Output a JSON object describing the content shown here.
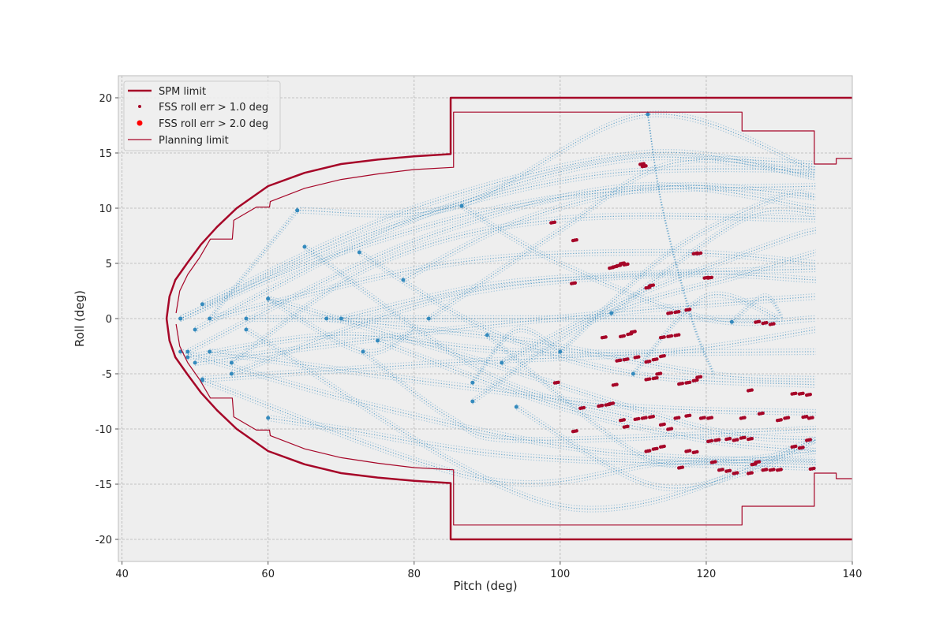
{
  "chart_data": {
    "type": "scatter",
    "title": "",
    "xlabel": "Pitch (deg)",
    "ylabel": "Roll (deg)",
    "xlim": [
      39.5,
      140
    ],
    "ylim": [
      -22,
      22
    ],
    "xticks": [
      40,
      60,
      80,
      100,
      120,
      140
    ],
    "yticks": [
      -20,
      -15,
      -10,
      -5,
      0,
      5,
      10,
      15,
      20
    ],
    "grid": true,
    "legend": {
      "placement": "top-left",
      "entries": [
        "SPM limit",
        "FSS roll err > 1.0 deg",
        "FSS roll err > 2.0 deg",
        "Planning limit"
      ]
    },
    "colors": {
      "limit": "#a60628",
      "trajectory": "#348abd",
      "err1": "#a60628",
      "err2": "#ff0000",
      "background": "#eeeeee"
    },
    "spm_limit": [
      [
        140,
        20
      ],
      [
        85,
        20
      ],
      [
        85,
        14.9
      ],
      [
        80,
        14.7
      ],
      [
        75,
        14.4
      ],
      [
        70,
        14
      ],
      [
        65,
        13.2
      ],
      [
        60,
        12
      ],
      [
        55.7,
        10
      ],
      [
        53,
        8.3
      ],
      [
        50.8,
        6.7
      ],
      [
        48.9,
        5
      ],
      [
        47.3,
        3.5
      ],
      [
        46.5,
        2
      ],
      [
        46.1,
        0
      ],
      [
        46.5,
        -2
      ],
      [
        47.3,
        -3.5
      ],
      [
        48.9,
        -5
      ],
      [
        50.8,
        -6.7
      ],
      [
        53,
        -8.3
      ],
      [
        55.7,
        -10
      ],
      [
        60,
        -12
      ],
      [
        65,
        -13.2
      ],
      [
        70,
        -14
      ],
      [
        75,
        -14.4
      ],
      [
        80,
        -14.7
      ],
      [
        85,
        -14.9
      ],
      [
        85,
        -20
      ],
      [
        140,
        -20
      ]
    ],
    "planning_limit": [
      [
        140,
        14.5
      ],
      [
        137.8,
        14.5
      ],
      [
        137.8,
        14
      ],
      [
        134.8,
        14
      ],
      [
        134.8,
        17
      ],
      [
        124.9,
        17
      ],
      [
        124.9,
        18.7
      ],
      [
        85.4,
        18.7
      ],
      [
        85.4,
        13.7
      ],
      [
        80,
        13.5
      ],
      [
        75,
        13.1
      ],
      [
        70,
        12.6
      ],
      [
        65,
        11.8
      ],
      [
        60.3,
        10.6
      ],
      [
        60.2,
        10.1
      ],
      [
        58.4,
        10.1
      ],
      [
        55.3,
        8.9
      ],
      [
        55.1,
        7.2
      ],
      [
        52.1,
        7.2
      ],
      [
        50.6,
        5.5
      ],
      [
        49,
        4
      ],
      [
        47.9,
        2.5
      ],
      [
        47.4,
        0.5
      ]
    ],
    "trajectories": [
      [
        [
          48,
          0
        ],
        [
          70,
          6
        ],
        [
          100,
          11
        ],
        [
          135,
          12
        ]
      ],
      [
        [
          48,
          0
        ],
        [
          75,
          8
        ],
        [
          105,
          13
        ],
        [
          135,
          13.5
        ]
      ],
      [
        [
          50,
          -1
        ],
        [
          80,
          9
        ],
        [
          110,
          14.5
        ],
        [
          135,
          13
        ]
      ],
      [
        [
          51,
          1.3
        ],
        [
          80,
          10
        ],
        [
          112,
          15
        ],
        [
          135,
          12.8
        ]
      ],
      [
        [
          49,
          -3
        ],
        [
          80,
          7
        ],
        [
          110,
          12
        ],
        [
          135,
          10
        ]
      ],
      [
        [
          52,
          0
        ],
        [
          85,
          5
        ],
        [
          115,
          6
        ],
        [
          135,
          5
        ]
      ],
      [
        [
          55,
          -5
        ],
        [
          85,
          2
        ],
        [
          115,
          4
        ],
        [
          135,
          3.5
        ]
      ],
      [
        [
          50,
          -4
        ],
        [
          85,
          -1
        ],
        [
          115,
          1
        ],
        [
          135,
          2
        ]
      ],
      [
        [
          51,
          -5.5
        ],
        [
          85,
          -4
        ],
        [
          115,
          -3
        ],
        [
          135,
          -1
        ]
      ],
      [
        [
          52,
          -3
        ],
        [
          85,
          -6
        ],
        [
          110,
          -8
        ],
        [
          135,
          -8.5
        ]
      ],
      [
        [
          48,
          -3
        ],
        [
          75,
          -8
        ],
        [
          105,
          -12
        ],
        [
          135,
          -13
        ]
      ],
      [
        [
          51,
          -5.6
        ],
        [
          90,
          -14.6
        ],
        [
          115,
          -13
        ],
        [
          135,
          -12.8
        ]
      ],
      [
        [
          60,
          -9
        ],
        [
          70,
          -10
        ],
        [
          95,
          -12.5
        ],
        [
          135,
          -13.5
        ]
      ],
      [
        [
          57,
          -1
        ],
        [
          100,
          -17
        ],
        [
          135,
          -11
        ]
      ],
      [
        [
          60,
          1.8
        ],
        [
          90,
          -4
        ],
        [
          120,
          -10
        ],
        [
          135,
          -11
        ]
      ],
      [
        [
          64,
          9.8
        ],
        [
          86,
          10.2
        ],
        [
          112,
          18.5
        ],
        [
          135,
          13.4
        ]
      ],
      [
        [
          65,
          6.5
        ],
        [
          90,
          -5
        ],
        [
          110,
          -9
        ]
      ],
      [
        [
          72.5,
          6
        ],
        [
          90,
          -1
        ],
        [
          110,
          -5
        ],
        [
          135,
          -6
        ]
      ],
      [
        [
          78.5,
          3.5
        ],
        [
          95,
          9
        ],
        [
          115,
          12
        ],
        [
          135,
          11
        ]
      ],
      [
        [
          86.5,
          10.2
        ],
        [
          100,
          5
        ],
        [
          120,
          0
        ],
        [
          135,
          0
        ]
      ],
      [
        [
          90,
          -1.5
        ],
        [
          110,
          -12
        ],
        [
          120,
          -13
        ],
        [
          135,
          -12
        ]
      ],
      [
        [
          88,
          -7.5
        ],
        [
          105,
          0
        ],
        [
          125,
          4
        ],
        [
          135,
          6
        ]
      ],
      [
        [
          92,
          -4
        ],
        [
          110,
          2
        ],
        [
          130,
          7
        ],
        [
          135,
          8
        ]
      ],
      [
        [
          100,
          -3
        ],
        [
          115,
          6
        ],
        [
          130,
          11
        ],
        [
          135,
          11
        ]
      ],
      [
        [
          110,
          -5
        ],
        [
          120,
          2
        ],
        [
          130,
          0
        ]
      ],
      [
        [
          123.5,
          -0.3
        ],
        [
          128,
          2
        ],
        [
          130.5,
          0
        ]
      ],
      [
        [
          82,
          0
        ],
        [
          100,
          8
        ],
        [
          115,
          14
        ],
        [
          135,
          14
        ]
      ],
      [
        [
          70,
          0
        ],
        [
          90,
          3
        ],
        [
          110,
          4
        ],
        [
          135,
          4.5
        ]
      ],
      [
        [
          68,
          0
        ],
        [
          95,
          -2
        ],
        [
          120,
          -5
        ],
        [
          135,
          -5.5
        ]
      ],
      [
        [
          75,
          -2
        ],
        [
          100,
          -8
        ],
        [
          120,
          -11
        ],
        [
          135,
          -12
        ]
      ],
      [
        [
          94,
          -8
        ],
        [
          112,
          -15
        ],
        [
          125,
          -14
        ],
        [
          135,
          -11
        ]
      ],
      [
        [
          112,
          18.5
        ],
        [
          114,
          10
        ],
        [
          118,
          0
        ],
        [
          121,
          -5
        ]
      ],
      [
        [
          107,
          0.5
        ],
        [
          125,
          9
        ],
        [
          135,
          9.5
        ]
      ],
      [
        [
          64,
          9.8
        ],
        [
          52,
          0
        ]
      ],
      [
        [
          60,
          1.8
        ],
        [
          73,
          -3
        ],
        [
          80,
          -1
        ]
      ],
      [
        [
          88,
          -5.8
        ],
        [
          94,
          -1
        ],
        [
          100,
          -3
        ]
      ],
      [
        [
          73,
          -3
        ],
        [
          85,
          -9
        ],
        [
          95,
          -11
        ],
        [
          135,
          -10
        ]
      ],
      [
        [
          57,
          0
        ],
        [
          78,
          0
        ],
        [
          98,
          0
        ],
        [
          130,
          0
        ]
      ],
      [
        [
          49,
          -3.5
        ],
        [
          70,
          -1.5
        ],
        [
          95,
          -3
        ],
        [
          135,
          -3
        ]
      ],
      [
        [
          55,
          -4
        ],
        [
          75,
          5
        ],
        [
          100,
          9
        ],
        [
          135,
          9
        ]
      ]
    ],
    "fss_err_1deg": [
      [
        111.2,
        14
      ],
      [
        111.5,
        13.8
      ],
      [
        99,
        8.7
      ],
      [
        102,
        7.1
      ],
      [
        101.8,
        3.2
      ],
      [
        107,
        4.6
      ],
      [
        107.5,
        4.7
      ],
      [
        108,
        4.8
      ],
      [
        108.5,
        5
      ],
      [
        109,
        4.9
      ],
      [
        112,
        2.8
      ],
      [
        112.5,
        3
      ],
      [
        118.5,
        5.9
      ],
      [
        119,
        5.9
      ],
      [
        120,
        3.7
      ],
      [
        120.5,
        3.7
      ],
      [
        115,
        0.5
      ],
      [
        116,
        0.6
      ],
      [
        117.5,
        0.8
      ],
      [
        127,
        -0.3
      ],
      [
        128,
        -0.4
      ],
      [
        129,
        -0.5
      ],
      [
        106,
        -1.7
      ],
      [
        108.5,
        -1.6
      ],
      [
        109.5,
        -1.4
      ],
      [
        110,
        -1.2
      ],
      [
        114,
        -1.7
      ],
      [
        115,
        -1.6
      ],
      [
        116,
        -1.5
      ],
      [
        108,
        -3.8
      ],
      [
        109,
        -3.7
      ],
      [
        110.5,
        -3.5
      ],
      [
        112,
        -3.9
      ],
      [
        113,
        -3.7
      ],
      [
        114,
        -3.4
      ],
      [
        113.5,
        -5
      ],
      [
        99.5,
        -5.8
      ],
      [
        107.5,
        -6
      ],
      [
        112,
        -5.5
      ],
      [
        113,
        -5.4
      ],
      [
        116.5,
        -5.9
      ],
      [
        117.5,
        -5.8
      ],
      [
        118.5,
        -5.6
      ],
      [
        119,
        -5.3
      ],
      [
        103,
        -8.1
      ],
      [
        105.5,
        -7.9
      ],
      [
        106.5,
        -7.8
      ],
      [
        107,
        -7.7
      ],
      [
        108.5,
        -9.2
      ],
      [
        109,
        -9.8
      ],
      [
        110.5,
        -9.1
      ],
      [
        111.5,
        -9
      ],
      [
        112.5,
        -8.9
      ],
      [
        114,
        -9.6
      ],
      [
        115,
        -10
      ],
      [
        116,
        -9
      ],
      [
        117.5,
        -8.8
      ],
      [
        119.5,
        -9
      ],
      [
        120.5,
        -9
      ],
      [
        102,
        -10.2
      ],
      [
        112,
        -12
      ],
      [
        113,
        -11.8
      ],
      [
        114,
        -11.6
      ],
      [
        117.5,
        -12
      ],
      [
        118.5,
        -12.1
      ],
      [
        120.5,
        -11.1
      ],
      [
        121.5,
        -11
      ],
      [
        123,
        -10.9
      ],
      [
        124,
        -11
      ],
      [
        125,
        -10.8
      ],
      [
        126,
        -10.9
      ],
      [
        121,
        -13
      ],
      [
        122,
        -13.7
      ],
      [
        123,
        -13.8
      ],
      [
        124,
        -14
      ],
      [
        126,
        -14
      ],
      [
        126.5,
        -13.2
      ],
      [
        127,
        -13
      ],
      [
        128,
        -13.7
      ],
      [
        129,
        -13.7
      ],
      [
        130,
        -13.7
      ],
      [
        125,
        -9
      ],
      [
        130,
        -9.2
      ],
      [
        131,
        -9
      ],
      [
        132,
        -6.8
      ],
      [
        133,
        -6.8
      ],
      [
        134,
        -6.9
      ],
      [
        133.5,
        -8.9
      ],
      [
        134.3,
        -9
      ],
      [
        134,
        -11
      ],
      [
        132,
        -11.6
      ],
      [
        133,
        -11.7
      ],
      [
        134.5,
        -13.6
      ],
      [
        126,
        -6.5
      ],
      [
        127.5,
        -8.6
      ],
      [
        116.5,
        -13.5
      ]
    ],
    "fss_err_2deg": []
  }
}
